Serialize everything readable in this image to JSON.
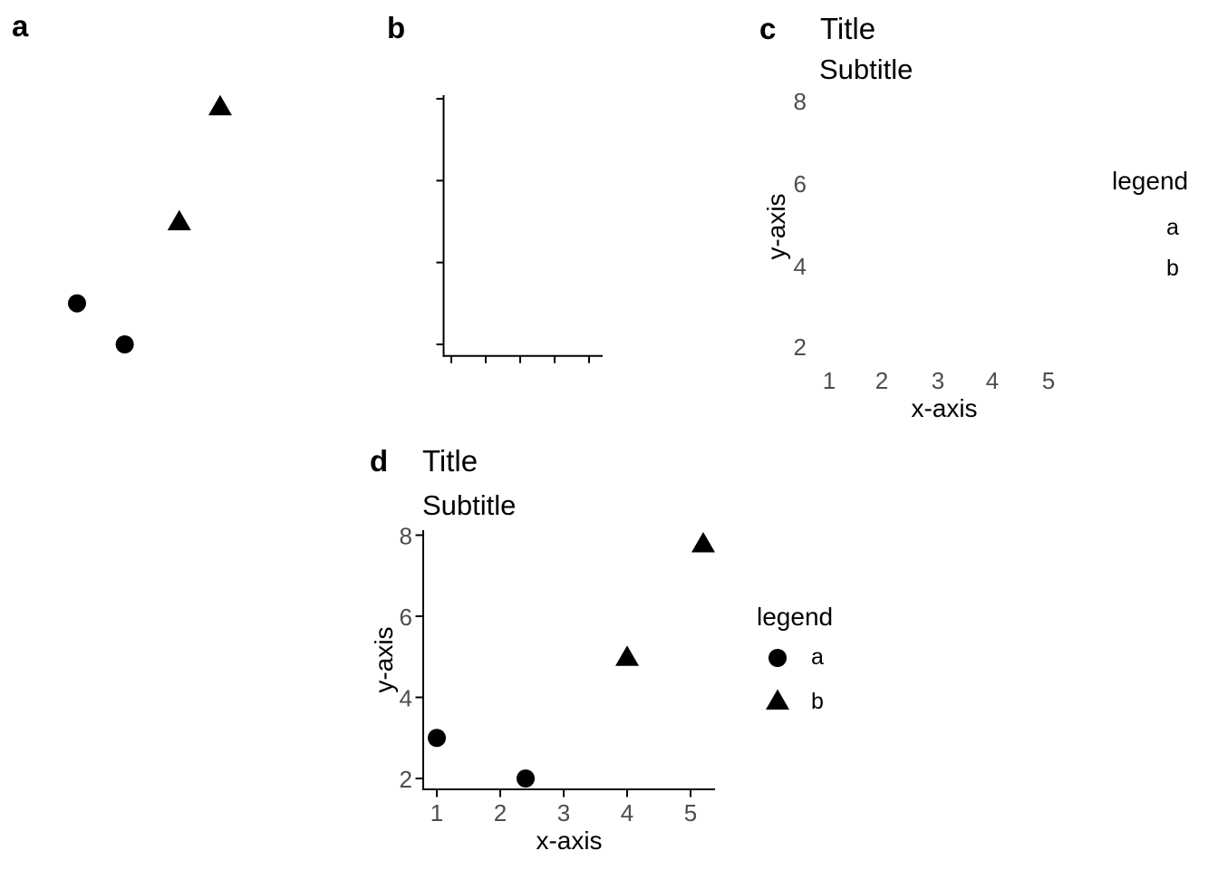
{
  "figure": {
    "background": "#ffffff",
    "text_color": "#000000",
    "tick_label_color": "#4d4d4d",
    "axis_color": "#000000",
    "point_color": "#000000"
  },
  "panels": [
    {
      "tag": "a",
      "shows": "data points only"
    },
    {
      "tag": "b",
      "shows": "axis lines and tick marks only"
    },
    {
      "tag": "c",
      "shows": "title, subtitle, axis text and legend text only"
    },
    {
      "tag": "d",
      "shows": "complete plot"
    }
  ],
  "chart_data": [
    {
      "panel": "a",
      "type": "scatter",
      "elements": [
        "points"
      ],
      "series": [
        {
          "name": "a",
          "marker": "circle",
          "points": [
            [
              1,
              3
            ],
            [
              2.4,
              2
            ]
          ]
        },
        {
          "name": "b",
          "marker": "triangle",
          "points": [
            [
              4,
              5
            ],
            [
              5.2,
              7.8
            ]
          ]
        }
      ],
      "xlim": [
        0.5,
        5.5
      ],
      "ylim": [
        1.5,
        8.5
      ]
    },
    {
      "panel": "b",
      "type": "scatter",
      "elements": [
        "axis-lines",
        "axis-ticks"
      ],
      "x_ticks": [
        1,
        2,
        3,
        4,
        5
      ],
      "y_ticks": [
        8,
        6,
        4,
        2
      ],
      "xlim": [
        0.5,
        5.5
      ],
      "ylim": [
        1.5,
        8.5
      ]
    },
    {
      "panel": "c",
      "type": "scatter",
      "elements": [
        "title",
        "subtitle",
        "axis-tick-labels",
        "axis-titles",
        "legend-text"
      ],
      "title": "Title",
      "subtitle": "Subtitle",
      "xlabel": "x-axis",
      "ylabel": "y-axis",
      "x_tick_labels": [
        "1",
        "2",
        "3",
        "4",
        "5"
      ],
      "y_tick_labels": [
        "8",
        "6",
        "4",
        "2"
      ],
      "legend": {
        "title": "legend",
        "labels": [
          "a",
          "b"
        ]
      }
    },
    {
      "panel": "d",
      "type": "scatter",
      "elements": [
        "title",
        "subtitle",
        "axes",
        "points",
        "legend"
      ],
      "title": "Title",
      "subtitle": "Subtitle",
      "xlabel": "x-axis",
      "ylabel": "y-axis",
      "x_ticks": [
        1,
        2,
        3,
        4,
        5
      ],
      "y_ticks": [
        8,
        6,
        4,
        2
      ],
      "series": [
        {
          "name": "a",
          "marker": "circle",
          "points": [
            [
              1,
              3
            ],
            [
              2.4,
              2
            ]
          ]
        },
        {
          "name": "b",
          "marker": "triangle",
          "points": [
            [
              4,
              5
            ],
            [
              5.2,
              7.8
            ]
          ]
        }
      ],
      "legend": {
        "title": "legend",
        "labels": [
          "a",
          "b"
        ]
      },
      "xlim": [
        0.5,
        5.5
      ],
      "ylim": [
        1.5,
        8.5
      ]
    }
  ]
}
